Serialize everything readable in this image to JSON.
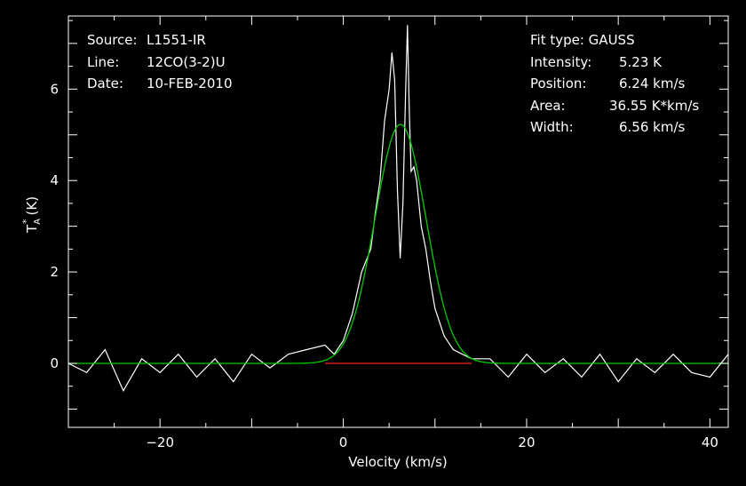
{
  "chart_data": {
    "type": "line",
    "xlabel": "Velocity (km/s)",
    "ylabel_main": "T",
    "ylabel_sub": "A",
    "ylabel_sup": "*",
    "ylabel_unit": "(K)",
    "xlim": [
      -30,
      42
    ],
    "ylim": [
      -1.4,
      7.6
    ],
    "xticks": [
      -20,
      0,
      20,
      40
    ],
    "yticks": [
      0,
      2,
      4,
      6
    ],
    "info_left": [
      {
        "key": "Source:",
        "value": "L1551-IR"
      },
      {
        "key": "Line:",
        "value": "12CO(3-2)U"
      },
      {
        "key": "Date:",
        "value": "10-FEB-2010"
      }
    ],
    "fit_type_label": "Fit type: GAUSS",
    "info_right": [
      {
        "key": "Intensity:",
        "value": "5.23 K"
      },
      {
        "key": "Position:",
        "value": "6.24 km/s"
      },
      {
        "key": "Area:",
        "value": "36.55 K*km/s"
      },
      {
        "key": "Width:",
        "value": "6.56 km/s"
      }
    ],
    "fit": {
      "amplitude": 5.23,
      "center": 6.24,
      "fwhm": 6.56
    },
    "baseline_range": [
      -2,
      14
    ],
    "series": [
      {
        "x": [
          -30,
          -28,
          -26,
          -24,
          -22,
          -20,
          -18,
          -16,
          -14,
          -12,
          -10,
          -8,
          -6,
          -4,
          -2,
          -1,
          0,
          1,
          2,
          3,
          3.5,
          4,
          4.5,
          5,
          5.3,
          5.6,
          5.9,
          6.2,
          6.5,
          6.8,
          7.0,
          7.2,
          7.4,
          7.7,
          8,
          8.5,
          9,
          9.5,
          10,
          11,
          12,
          13,
          14,
          16,
          18,
          20,
          22,
          24,
          26,
          28,
          30,
          32,
          34,
          36,
          38,
          40,
          42
        ],
        "values": [
          0.0,
          -0.2,
          0.3,
          -0.6,
          0.1,
          -0.2,
          0.2,
          -0.3,
          0.1,
          -0.4,
          0.2,
          -0.1,
          0.2,
          0.3,
          0.4,
          0.2,
          0.5,
          1.1,
          2.0,
          2.5,
          3.3,
          4.0,
          5.3,
          6.0,
          6.8,
          6.2,
          3.8,
          2.3,
          3.5,
          6.0,
          7.4,
          5.5,
          4.2,
          4.3,
          4.0,
          3.0,
          2.5,
          1.8,
          1.2,
          0.6,
          0.3,
          0.2,
          0.1,
          0.1,
          -0.3,
          0.2,
          -0.2,
          0.1,
          -0.3,
          0.2,
          -0.4,
          0.1,
          -0.2,
          0.2,
          -0.2,
          -0.3,
          0.2
        ]
      }
    ]
  }
}
